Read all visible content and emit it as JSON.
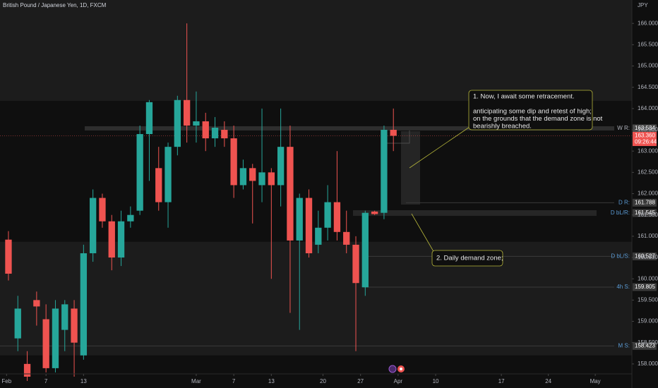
{
  "chart_data": {
    "type": "candlestick",
    "title": "British Pound / Japanese Yen, 1D, FXCM",
    "currency": "JPY",
    "open": [
      160.92,
      158.6,
      158.0,
      159.5,
      159.05,
      157.9,
      158.8,
      159.3,
      158.2,
      160.6,
      161.9,
      161.35,
      160.5,
      161.35,
      161.6,
      163.4,
      162.6,
      161.8,
      163.1,
      164.2,
      163.6,
      163.7,
      163.3,
      163.5,
      163.3,
      162.2,
      162.6,
      162.2,
      162.5,
      162.2,
      163.1,
      160.9,
      161.9,
      160.8,
      161.2,
      161.8,
      161.1,
      160.8,
      159.8,
      161.58,
      161.55,
      163.5
    ],
    "high": [
      161.12,
      159.6,
      158.3,
      159.7,
      159.4,
      159.5,
      159.5,
      159.5,
      160.8,
      162.1,
      162.0,
      161.5,
      161.6,
      161.7,
      163.6,
      164.2,
      163.1,
      163.2,
      164.3,
      166.0,
      164.4,
      163.9,
      163.8,
      163.7,
      163.6,
      162.8,
      162.7,
      164.0,
      162.6,
      164.0,
      163.6,
      162.0,
      162.1,
      161.6,
      162.2,
      163.0,
      161.6,
      161.0,
      161.6,
      161.6,
      163.6,
      164.0
    ],
    "low": [
      159.96,
      158.3,
      157.6,
      158.9,
      157.8,
      157.8,
      158.3,
      157.7,
      158.1,
      160.4,
      161.2,
      160.2,
      160.3,
      161.2,
      161.5,
      162.3,
      161.6,
      161.2,
      162.9,
      163.2,
      163.2,
      163.0,
      163.1,
      163.1,
      161.9,
      162.1,
      161.3,
      161.8,
      160.0,
      161.7,
      159.2,
      158.8,
      160.5,
      160.6,
      160.9,
      160.9,
      160.6,
      158.3,
      159.6,
      161.5,
      161.4,
      163.0
    ],
    "close": [
      160.12,
      159.3,
      157.7,
      159.35,
      157.9,
      159.3,
      159.4,
      158.5,
      160.6,
      161.9,
      161.35,
      160.5,
      161.35,
      161.5,
      163.4,
      164.15,
      161.8,
      163.1,
      164.2,
      163.6,
      163.7,
      163.3,
      163.55,
      163.3,
      162.2,
      162.6,
      162.3,
      162.5,
      162.2,
      163.1,
      160.9,
      161.9,
      160.6,
      161.2,
      161.8,
      161.1,
      160.8,
      159.9,
      161.55,
      161.52,
      163.5,
      163.36
    ],
    "up_color": "#26a69a",
    "down_color": "#ef5350",
    "ylim": [
      157.6,
      166.55
    ],
    "yticks": [
      {
        "value": 158,
        "label": "158.000"
      },
      {
        "value": 158.5,
        "label": "158.500"
      },
      {
        "value": 159,
        "label": "159.000"
      },
      {
        "value": 159.5,
        "label": "159.500"
      },
      {
        "value": 160,
        "label": "160.000"
      },
      {
        "value": 160.5,
        "label": "160.500"
      },
      {
        "value": 161,
        "label": "161.000"
      },
      {
        "value": 161.5,
        "label": "161.500"
      },
      {
        "value": 162,
        "label": "162.000"
      },
      {
        "value": 162.5,
        "label": "162.500"
      },
      {
        "value": 163,
        "label": "163.000"
      },
      {
        "value": 163.5,
        "label": "163.500"
      },
      {
        "value": 164,
        "label": "164.000"
      },
      {
        "value": 164.5,
        "label": "164.500"
      },
      {
        "value": 165,
        "label": "165.000"
      },
      {
        "value": 165.5,
        "label": "165.500"
      },
      {
        "value": 166,
        "label": "166.000"
      }
    ],
    "xlim": [
      -0.9,
      66.4
    ],
    "xticks": [
      {
        "value": -0.2,
        "label": "Feb"
      },
      {
        "value": 4,
        "label": "7"
      },
      {
        "value": 8,
        "label": "13"
      },
      {
        "value": 20,
        "label": "Mar"
      },
      {
        "value": 24,
        "label": "7"
      },
      {
        "value": 28,
        "label": "13"
      },
      {
        "value": 33.5,
        "label": "20"
      },
      {
        "value": 37.5,
        "label": "27"
      },
      {
        "value": 41.5,
        "label": "Apr"
      },
      {
        "value": 45.5,
        "label": "10"
      },
      {
        "value": 52.5,
        "label": "17"
      },
      {
        "value": 57.5,
        "label": "24"
      },
      {
        "value": 62.5,
        "label": "May"
      }
    ],
    "zones": [
      {
        "low": 164.18,
        "high": 166.55
      },
      {
        "low": 158.2,
        "high": 160.87
      }
    ],
    "levels": [
      {
        "label": "W R:",
        "value": 163.534,
        "value_label": "163.534",
        "color": "#4a4a4a"
      },
      {
        "label": "D R:",
        "value": 161.788,
        "value_label": "161.788",
        "color": "#3a3a3a"
      },
      {
        "label": "D bL/R:",
        "value": 161.545,
        "value_label": "161.545",
        "color": "#3a3a3a"
      },
      {
        "label": "D bL/S:",
        "value": 160.527,
        "value_label": "160.527",
        "color": "#3a3a3a"
      },
      {
        "label": "4h S:",
        "value": 159.805,
        "value_label": "159.805",
        "color": "#3a3a3a"
      },
      {
        "label": "M S:",
        "value": 158.423,
        "value_label": "158.423",
        "color": "#3a3a3a"
      }
    ],
    "current_price": {
      "value": 163.36,
      "label": "163.360",
      "countdown": "09:26:44",
      "color": "#ef5350"
    },
    "annotations": [
      {
        "lines": [
          "1. Now, I await some retracement.",
          "",
          "anticipating some dip and retest of high;",
          "on the grounds that the demand zone is not",
          "bearishly breached."
        ]
      },
      {
        "lines": [
          "2. Daily demand zone;"
        ]
      }
    ]
  }
}
